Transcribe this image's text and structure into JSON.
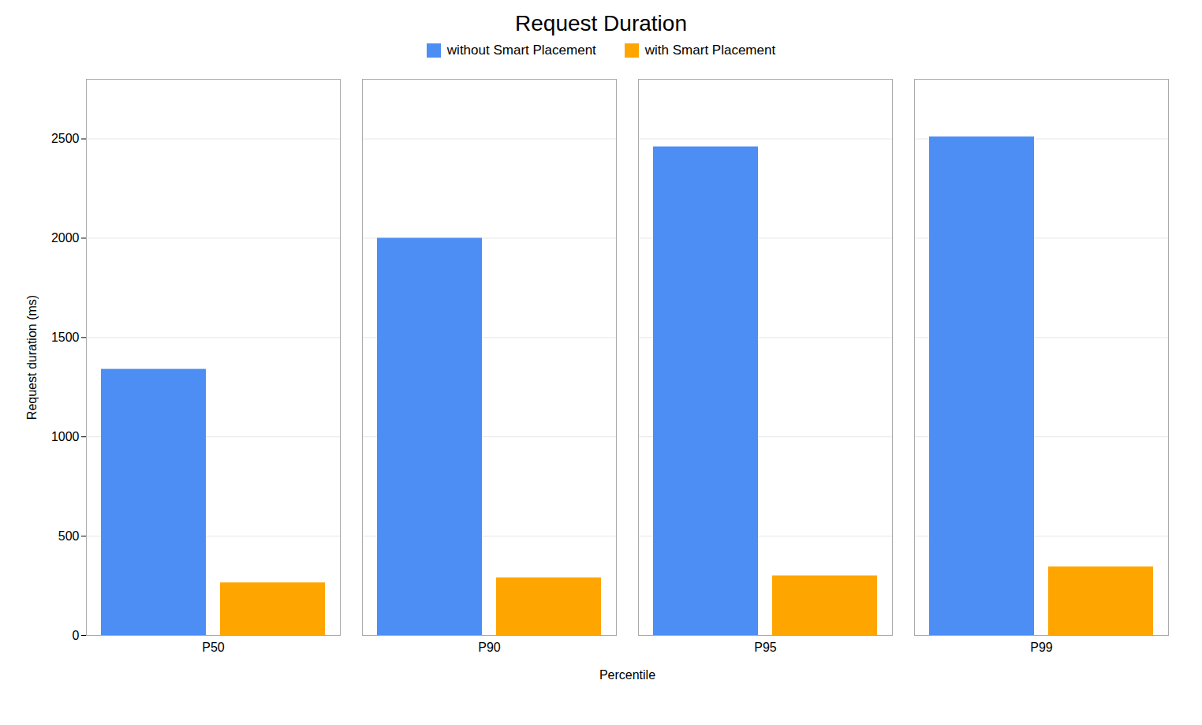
{
  "chart_data": {
    "type": "bar",
    "title": "Request Duration",
    "xlabel": "Percentile",
    "ylabel": "Request duration (ms)",
    "categories": [
      "P50",
      "P90",
      "P95",
      "P99"
    ],
    "series": [
      {
        "name": "without Smart Placement",
        "color": "#4d8ef5",
        "values": [
          1340,
          2000,
          2460,
          2510
        ]
      },
      {
        "name": "with Smart Placement",
        "color": "#FFA500",
        "values": [
          265,
          290,
          300,
          345
        ]
      }
    ],
    "ylim": [
      0,
      2800
    ],
    "yticks": [
      0,
      500,
      1000,
      1500,
      2000,
      2500
    ],
    "grid": true,
    "legend": "top"
  }
}
